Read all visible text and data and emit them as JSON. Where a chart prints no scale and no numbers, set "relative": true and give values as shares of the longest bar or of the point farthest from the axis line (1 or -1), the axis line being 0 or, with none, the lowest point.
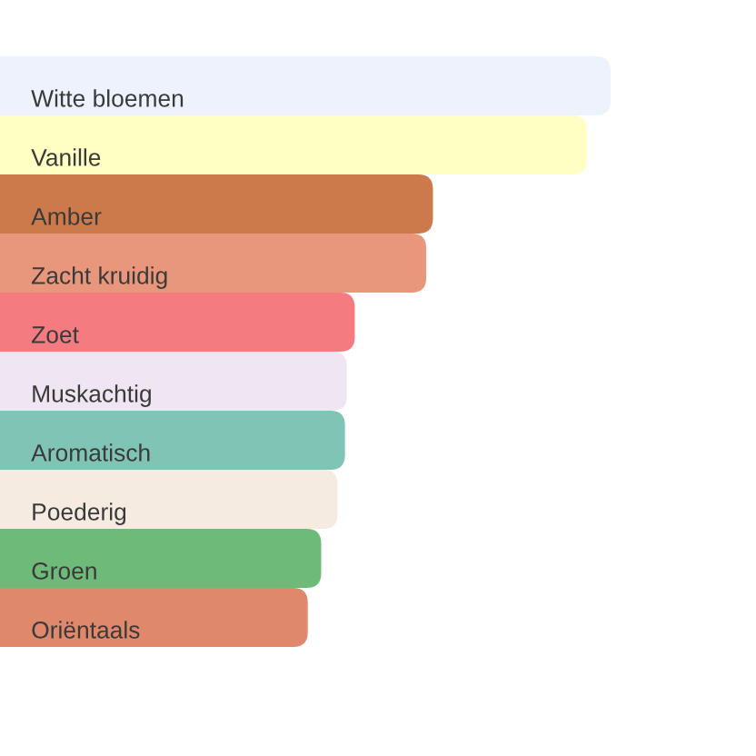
{
  "chart_data": {
    "type": "bar",
    "orientation": "horizontal",
    "relative": true,
    "categories": [
      "Witte bloemen",
      "Vanille",
      "Amber",
      "Zacht kruidig",
      "Zoet",
      "Muskachtig",
      "Aromatisch",
      "Poederig",
      "Groen",
      "Oriëntaals"
    ],
    "values": [
      1,
      0.961,
      0.709,
      0.698,
      0.581,
      0.568,
      0.565,
      0.553,
      0.526,
      0.504
    ],
    "colors": [
      "#eef2fc",
      "#ffffc4",
      "#cc7a4b",
      "#e8977c",
      "#f47b80",
      "#efe5f3",
      "#80c4b6",
      "#f5ebe1",
      "#6eba78",
      "#e0886b"
    ]
  }
}
